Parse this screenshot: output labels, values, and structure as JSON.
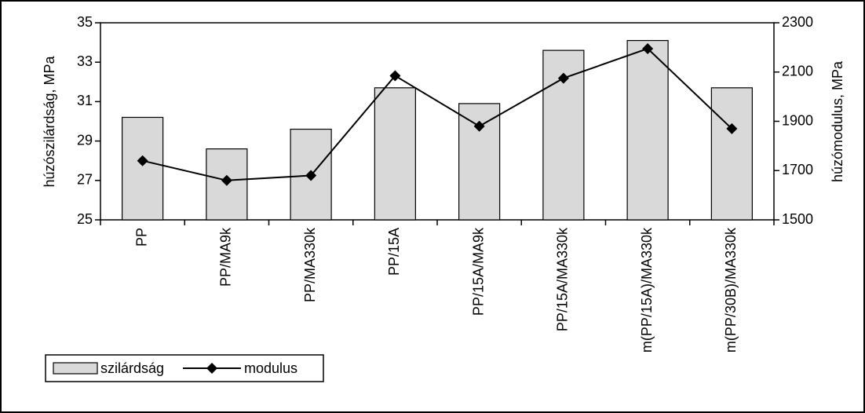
{
  "chart_data": {
    "type": "bar",
    "categories": [
      "PP",
      "PP/MA9k",
      "PP/MA330k",
      "PP/15A",
      "PP/15A/MA9k",
      "PP/15A/MA330k",
      "m(PP/15A)/MA330k",
      "m(PP/30B)/MA330k"
    ],
    "series": [
      {
        "name": "szilárdság",
        "type": "bar",
        "color": "#d9d9d9",
        "values": [
          30.2,
          28.6,
          29.6,
          31.7,
          30.9,
          33.6,
          34.1,
          31.7
        ]
      },
      {
        "name": "modulus",
        "type": "line",
        "axis": "y2",
        "color": "#000000",
        "values": [
          1740,
          1660,
          1680,
          2085,
          1880,
          2075,
          2195,
          1870
        ]
      }
    ],
    "ylabel": "húzószilárdság, MPa",
    "y2label": "húzómodulus, MPa",
    "ylim": [
      25,
      35
    ],
    "yticks": [
      25,
      27,
      29,
      31,
      33,
      35
    ],
    "y2lim": [
      1500,
      2300
    ],
    "y2ticks": [
      1500,
      1700,
      1900,
      2100,
      2300
    ],
    "legend": "bottom-left"
  }
}
